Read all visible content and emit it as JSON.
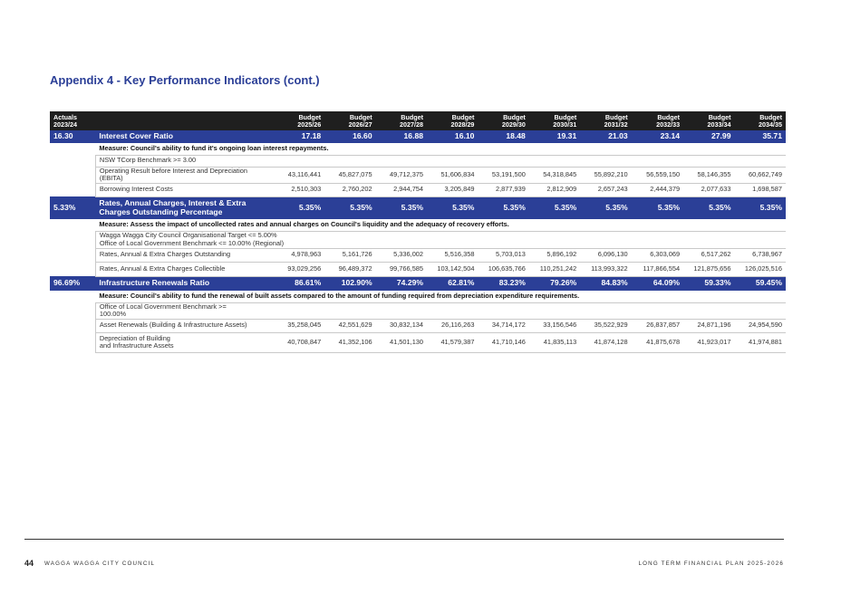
{
  "title": "Appendix 4 - Key Performance Indicators (cont.)",
  "header": {
    "actuals_line1": "Actuals",
    "actuals_line2": "2023/24",
    "years": [
      {
        "l1": "Budget",
        "l2": "2025/26"
      },
      {
        "l1": "Budget",
        "l2": "2026/27"
      },
      {
        "l1": "Budget",
        "l2": "2027/28"
      },
      {
        "l1": "Budget",
        "l2": "2028/29"
      },
      {
        "l1": "Budget",
        "l2": "2029/30"
      },
      {
        "l1": "Budget",
        "l2": "2030/31"
      },
      {
        "l1": "Budget",
        "l2": "2031/32"
      },
      {
        "l1": "Budget",
        "l2": "2032/33"
      },
      {
        "l1": "Budget",
        "l2": "2033/34"
      },
      {
        "l1": "Budget",
        "l2": "2034/35"
      }
    ]
  },
  "sections": [
    {
      "actual": "16.30",
      "name": "Interest Cover Ratio",
      "values": [
        "17.18",
        "16.60",
        "16.88",
        "16.10",
        "18.48",
        "19.31",
        "21.03",
        "23.14",
        "27.99",
        "35.71"
      ],
      "measure": "Measure: Council's ability to fund it's ongoing loan interest repayments.",
      "rows": [
        {
          "label": "NSW TCorp Benchmark >= 3.00",
          "values": []
        },
        {
          "label": "Operating Result before Interest and Depreciation (EBITA)",
          "values": [
            "43,116,441",
            "45,827,075",
            "49,712,375",
            "51,606,834",
            "53,191,500",
            "54,318,845",
            "55,892,210",
            "56,559,150",
            "58,146,355",
            "60,662,749"
          ]
        },
        {
          "label": "Borrowing Interest Costs",
          "values": [
            "2,510,303",
            "2,760,202",
            "2,944,754",
            "3,205,849",
            "2,877,939",
            "2,812,909",
            "2,657,243",
            "2,444,379",
            "2,077,633",
            "1,698,587"
          ]
        }
      ]
    },
    {
      "actual": "5.33%",
      "name": "Rates, Annual Charges, Interest & Extra Charges Outstanding Percentage",
      "values": [
        "5.35%",
        "5.35%",
        "5.35%",
        "5.35%",
        "5.35%",
        "5.35%",
        "5.35%",
        "5.35%",
        "5.35%",
        "5.35%"
      ],
      "measure": "Measure: Assess the impact of uncollected rates and annual charges on Council's liquidity and the adequacy of recovery efforts.",
      "rows": [
        {
          "label": "Wagga Wagga City Council Organisational Target <= 5.00%",
          "label2": "Office of Local Government Benchmark <= 10.00% (Regional)",
          "values": []
        },
        {
          "label": "Rates, Annual & Extra Charges Outstanding",
          "values": [
            "4,978,963",
            "5,161,726",
            "5,336,002",
            "5,516,358",
            "5,703,013",
            "5,896,192",
            "6,096,130",
            "6,303,069",
            "6,517,262",
            "6,738,967"
          ]
        },
        {
          "label": "Rates, Annual & Extra Charges Collectible",
          "values": [
            "93,029,256",
            "96,489,372",
            "99,766,585",
            "103,142,504",
            "106,635,766",
            "110,251,242",
            "113,993,322",
            "117,866,554",
            "121,875,656",
            "126,025,516"
          ]
        }
      ]
    },
    {
      "actual": "96.69%",
      "name": "Infrastructure Renewals Ratio",
      "values": [
        "86.61%",
        "102.90%",
        "74.29%",
        "62.81%",
        "83.23%",
        "79.26%",
        "84.83%",
        "64.09%",
        "59.33%",
        "59.45%"
      ],
      "measure": "Measure: Council's ability to fund the renewal of built assets compared to the amount of funding required from depreciation expenditure requirements.",
      "rows": [
        {
          "label": "Office of Local Government Benchmark >=",
          "label2": "100.00%",
          "values": []
        },
        {
          "label": "Asset Renewals (Building & Infrastructure Assets)",
          "values": [
            "35,258,045",
            "42,551,629",
            "30,832,134",
            "26,116,263",
            "34,714,172",
            "33,156,546",
            "35,522,929",
            "26,837,857",
            "24,871,196",
            "24,954,590"
          ]
        },
        {
          "label": "Depreciation of Building",
          "label2": "and Infrastructure Assets",
          "values": [
            "40,708,847",
            "41,352,106",
            "41,501,130",
            "41,579,387",
            "41,710,146",
            "41,835,113",
            "41,874,128",
            "41,875,678",
            "41,923,017",
            "41,974,881"
          ]
        }
      ]
    }
  ],
  "footer": {
    "page_number": "44",
    "council": "WAGGA WAGGA CITY COUNCIL",
    "plan": "LONG TERM FINANCIAL PLAN 2025-2026"
  },
  "colors": {
    "accent": "#2b3f97",
    "header": "#1f1f1f"
  }
}
